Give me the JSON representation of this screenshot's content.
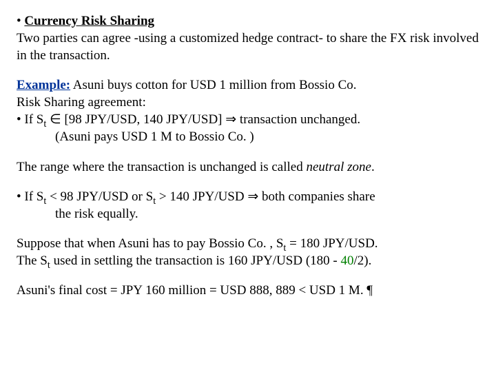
{
  "title_bullet": "• ",
  "title": "Currency Risk Sharing",
  "intro": "Two parties can agree -using a customized hedge contract- to share the FX risk involved in the transaction.",
  "example_label": "Example:",
  "example_rest": " Asuni buys cotton for USD 1 million from Bossio Co.",
  "rsa_line": "Risk Sharing agreement:",
  "cond1_a": "•  If  S",
  "cond1_sub": "t",
  "cond1_b": "  ∈  [98  JPY/USD,  140  JPY/USD]    ⇒  transaction  unchanged.",
  "cond1_cont": "(Asuni pays USD 1 M to Bossio Co. )",
  "neutral_a": "The range where the transaction is unchanged is called ",
  "neutral_b": "neutral zone",
  "neutral_c": ".",
  "cond2_a": "• If  S",
  "cond2_sub1": "t",
  "cond2_b": " < 98 JPY/USD  or  S",
  "cond2_sub2": "t",
  "cond2_c": " > 140 JPY/USD   ⇒ both companies share",
  "cond2_cont": "the risk equally.",
  "supp1_a": "Suppose that when Asuni has to pay Bossio Co. , S",
  "supp1_sub": "t",
  "supp1_b": " = 180 JPY/USD.",
  "supp2_a": "The S",
  "supp2_sub": "t",
  "supp2_b": " used in settling the transaction is 160 JPY/USD (180 - ",
  "supp2_green": "40",
  "supp2_c": "/2).",
  "final": "Asuni's final cost = JPY 160 million = USD 888, 889  < USD 1 M. ¶"
}
